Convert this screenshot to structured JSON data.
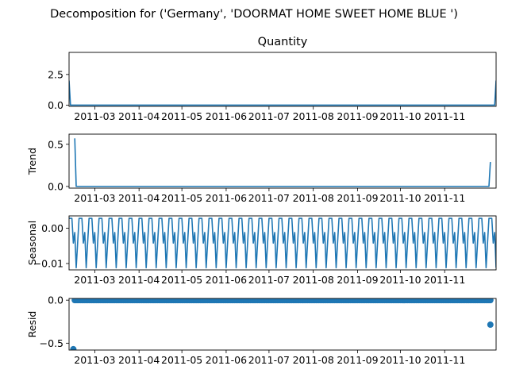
{
  "chart_data": {
    "type": "line",
    "suptitle": "Decomposition for ('Germany', 'DOORMAT HOME SWEET HOME BLUE ')",
    "x_range": [
      "2011-02-11",
      "2011-12-07"
    ],
    "x_ticks": [
      "2011-03",
      "2011-04",
      "2011-05",
      "2011-06",
      "2011-07",
      "2011-08",
      "2011-09",
      "2011-10",
      "2011-11"
    ],
    "panels": [
      {
        "id": "observed",
        "title": "Quantity",
        "ylabel": "",
        "kind": "line",
        "ylim": [
          -0.1,
          4.3
        ],
        "yticks": [
          0.0,
          2.5
        ],
        "ytick_labels": [
          "0.0",
          "2.5"
        ],
        "points": [
          {
            "x": "2011-02-11",
            "y": 2.0
          },
          {
            "x": "2011-02-12",
            "y": 0.0
          },
          {
            "x": "2011-12-06",
            "y": 0.0
          },
          {
            "x": "2011-12-07",
            "y": 2.0
          }
        ]
      },
      {
        "id": "trend",
        "title": "",
        "ylabel": "Trend",
        "kind": "line",
        "ylim": [
          -0.02,
          0.62
        ],
        "yticks": [
          0.0,
          0.5
        ],
        "ytick_labels": [
          "0.0",
          "0.5"
        ],
        "points": [
          {
            "x": "2011-02-15",
            "y": 0.57
          },
          {
            "x": "2011-02-16",
            "y": 0.0
          },
          {
            "x": "2011-12-02",
            "y": 0.0
          },
          {
            "x": "2011-12-03",
            "y": 0.29
          }
        ]
      },
      {
        "id": "seasonal",
        "title": "",
        "ylabel": "Seasonal",
        "kind": "periodic",
        "ylim": [
          -0.0118,
          0.0035
        ],
        "yticks": [
          0.0,
          -0.01
        ],
        "ytick_labels": [
          "0.00",
          "−0.01"
        ],
        "period_days": 7,
        "pattern": [
          0.0028,
          0.0028,
          0.0028,
          -0.0042,
          -0.0012,
          -0.0112,
          -0.0042
        ]
      },
      {
        "id": "resid",
        "title": "",
        "ylabel": "Resid",
        "kind": "scatter",
        "ylim": [
          -0.58,
          0.02
        ],
        "yticks": [
          0.0,
          -0.5
        ],
        "ytick_labels": [
          "0.0",
          "−0.5"
        ],
        "baseline": {
          "from": "2011-02-15",
          "to": "2011-12-03",
          "y": 0.0,
          "step_days": 1
        },
        "outliers": [
          {
            "x": "2011-02-14",
            "y": -0.57
          },
          {
            "x": "2011-12-03",
            "y": -0.285
          }
        ]
      }
    ]
  }
}
